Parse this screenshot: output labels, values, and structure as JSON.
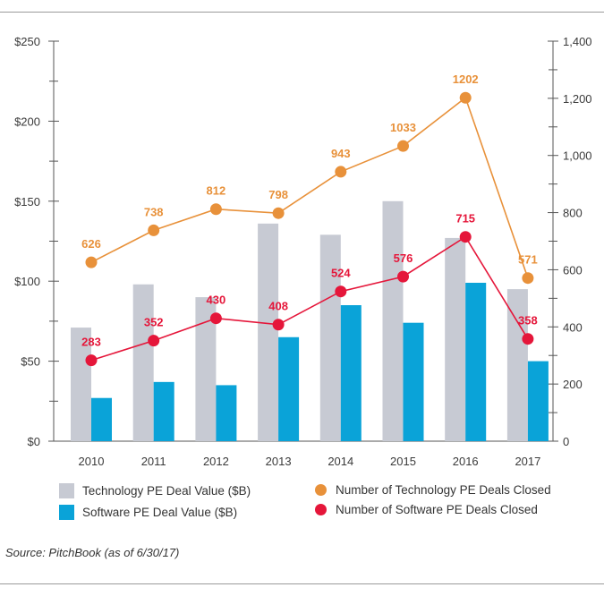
{
  "chart_data": {
    "type": "bar+line",
    "categories": [
      "2010",
      "2011",
      "2012",
      "2013",
      "2014",
      "2015",
      "2016",
      "2017"
    ],
    "bar_series": [
      {
        "name": "Technology PE Deal Value ($B)",
        "color": "#c7cad3",
        "values": [
          71,
          98,
          90,
          136,
          129,
          150,
          127,
          95
        ]
      },
      {
        "name": "Software PE Deal Value ($B)",
        "color": "#0aa3d8",
        "values": [
          27,
          37,
          35,
          65,
          85,
          74,
          99,
          50
        ]
      }
    ],
    "line_series": [
      {
        "name": "Number of Technology PE Deals Closed",
        "color": "#e8913a",
        "values": [
          626,
          738,
          812,
          798,
          943,
          1033,
          1202,
          571
        ],
        "labels": [
          "626",
          "738",
          "812",
          "798",
          "943",
          "1033",
          "1202",
          "571"
        ]
      },
      {
        "name": "Number of Software PE Deals Closed",
        "color": "#e5163a",
        "values": [
          283,
          352,
          430,
          408,
          524,
          576,
          715,
          358
        ],
        "labels": [
          "283",
          "352",
          "430",
          "408",
          "524",
          "576",
          "715",
          "358"
        ]
      }
    ],
    "y_left": {
      "ticks": [
        "$0",
        "$50",
        "$100",
        "$150",
        "$200",
        "$250"
      ],
      "min": 0,
      "max": 250
    },
    "y_right": {
      "ticks": [
        "0",
        "200",
        "400",
        "600",
        "800",
        "1,000",
        "1,200",
        "1,400"
      ],
      "min": 0,
      "max": 1400
    },
    "grid": false,
    "legend_position": "bottom"
  },
  "source": "Source: PitchBook (as of 6/30/17)"
}
